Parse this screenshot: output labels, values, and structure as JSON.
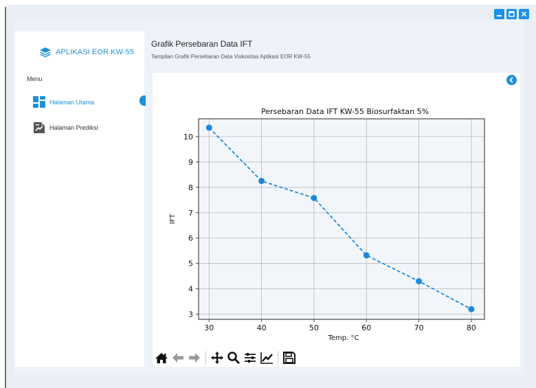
{
  "window": {
    "controls": [
      {
        "name": "minimize",
        "icon": "minimize-icon"
      },
      {
        "name": "maximize",
        "icon": "maximize-icon"
      },
      {
        "name": "close",
        "icon": "close-icon"
      }
    ],
    "accent_color": "#1e8fd8"
  },
  "sidebar": {
    "brand": "APLIKASI EOR KW-55",
    "brand_icon": "layers-icon",
    "menu_heading": "Menu",
    "items": [
      {
        "label": "Halaman Utama",
        "icon": "dashboard-icon",
        "active": true
      },
      {
        "label": "Halaman Prediksi",
        "icon": "prediction-document-icon",
        "active": false
      }
    ]
  },
  "header": {
    "title": "Grafik Persebaran Data IFT",
    "subtitle": "Tampilan Grafik Persebaran Data Viskositas Aplikasi EOR KW-55"
  },
  "content": {
    "back_icon": "chevron-left-icon"
  },
  "toolbar": {
    "buttons": [
      "home-icon",
      "back-arrow-icon",
      "forward-arrow-icon",
      "pan-icon",
      "zoom-icon",
      "configure-subplots-icon",
      "edit-axis-icon",
      "save-icon"
    ]
  },
  "chart_data": {
    "type": "line",
    "title": "Persebaran Data IFT KW-55 Biosurfaktan 5%",
    "xlabel": "Temp. °C",
    "ylabel": "IFT",
    "x": [
      30,
      40,
      50,
      60,
      70,
      80
    ],
    "series": [
      {
        "values": [
          10.35,
          8.25,
          7.58,
          5.32,
          4.3,
          3.2
        ],
        "color": "#1e88dc",
        "style": "dashed",
        "marker": "circle"
      }
    ],
    "xlim": [
      28,
      82.5
    ],
    "ylim": [
      2.8,
      10.7
    ],
    "xticks": [
      "30",
      "40",
      "50",
      "60",
      "70",
      "80"
    ],
    "yticks": [
      "3",
      "4",
      "5",
      "6",
      "7",
      "8",
      "9",
      "10"
    ],
    "grid": true,
    "background": "#f2f6fb"
  }
}
